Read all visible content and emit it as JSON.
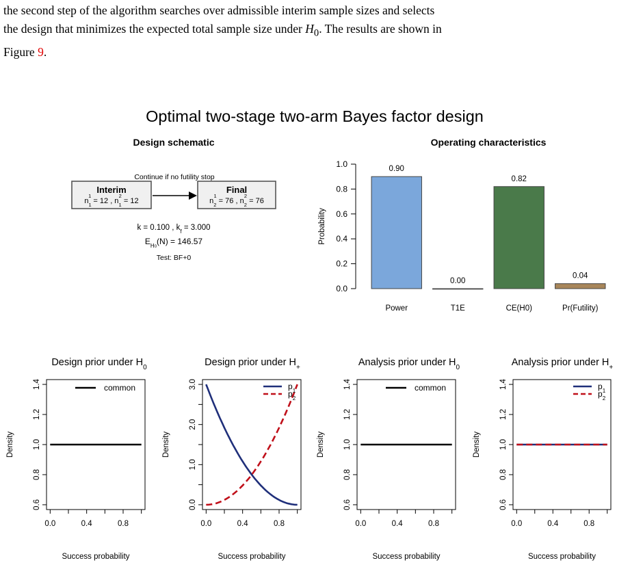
{
  "paragraph": {
    "line1": "the second step of the algorithm searches over admissible interim sample sizes and selects",
    "line2_a": "the design that minimizes the expected total sample size under ",
    "line2_math": "H",
    "line2_sub": "0",
    "line2_b": ". The results are shown in",
    "line3_a": "Figure ",
    "line3_ref": "9",
    "line3_b": "."
  },
  "figure": {
    "main_title": "Optimal two-stage two-arm Bayes factor design",
    "schematic": {
      "title": "Design schematic",
      "continue_label": "Continue if no futility stop",
      "interim": {
        "title": "Interim",
        "n1": "12",
        "n2": "12"
      },
      "final": {
        "title": "Final",
        "n1": "76",
        "n2": "76"
      },
      "k_label": "k = 0.100 , k",
      "kf_sub": "f",
      "kf_value": " = 3.000",
      "en_label_a": "E",
      "en_sub": "H",
      "en_sub2": "0",
      "en_label_b": "(N) = 146.57",
      "test_label": "Test: BF+0"
    }
  },
  "chart_data": [
    {
      "type": "bar",
      "title": "Operating characteristics",
      "ylabel": "Probability",
      "xlabel": "",
      "ylim": [
        0,
        1
      ],
      "yticks": [
        "0.0",
        "0.2",
        "0.4",
        "0.6",
        "0.8",
        "1.0"
      ],
      "categories": [
        "Power",
        "T1E",
        "CE(H0)",
        "Pr(Futility)"
      ],
      "values": [
        0.9,
        0.0,
        0.82,
        0.04
      ],
      "labels": [
        "0.90",
        "0.00",
        "0.82",
        "0.04"
      ],
      "colors": [
        "#7ba7db",
        "#ffffff",
        "#4a7a4a",
        "#a8865a"
      ]
    },
    {
      "type": "line",
      "title": "Design prior under H",
      "title_sub": "0",
      "xlabel": "Success probability",
      "ylabel": "Density",
      "xlim": [
        0,
        1
      ],
      "ylim": [
        0.6,
        1.4
      ],
      "xticks": [
        "0.0",
        "0.4",
        "0.8"
      ],
      "yticks": [
        "0.6",
        "0.8",
        "1.0",
        "1.2",
        "1.4"
      ],
      "series": [
        {
          "name": "common",
          "x": [
            0,
            1
          ],
          "y": [
            1,
            1
          ],
          "color": "#000000",
          "dash": "solid"
        }
      ]
    },
    {
      "type": "line",
      "title": "Design prior under H",
      "title_sub": "+",
      "xlabel": "Success probability",
      "ylabel": "Density",
      "xlim": [
        0,
        1
      ],
      "ylim": [
        0,
        3
      ],
      "xticks": [
        "0.0",
        "0.4",
        "0.8"
      ],
      "yticks": [
        "0.0",
        "1.0",
        "2.0",
        "3.0"
      ],
      "series": [
        {
          "name": "p",
          "sub": "1",
          "x": [
            0,
            0.1,
            0.2,
            0.3,
            0.4,
            0.5,
            0.6,
            0.7,
            0.8,
            0.9,
            1.0
          ],
          "y": [
            3.0,
            2.43,
            1.92,
            1.47,
            1.08,
            0.75,
            0.48,
            0.27,
            0.12,
            0.03,
            0.0
          ],
          "color": "#1f2f7a",
          "dash": "solid"
        },
        {
          "name": "p",
          "sub": "2",
          "x": [
            0,
            0.1,
            0.2,
            0.3,
            0.4,
            0.5,
            0.6,
            0.7,
            0.8,
            0.9,
            1.0
          ],
          "y": [
            0.0,
            0.03,
            0.12,
            0.27,
            0.48,
            0.75,
            1.08,
            1.47,
            1.92,
            2.43,
            3.0
          ],
          "color": "#c0101a",
          "dash": "dashed"
        }
      ]
    },
    {
      "type": "line",
      "title": "Analysis prior under H",
      "title_sub": "0",
      "xlabel": "Success probability",
      "ylabel": "Density",
      "xlim": [
        0,
        1
      ],
      "ylim": [
        0.6,
        1.4
      ],
      "xticks": [
        "0.0",
        "0.4",
        "0.8"
      ],
      "yticks": [
        "0.6",
        "0.8",
        "1.0",
        "1.2",
        "1.4"
      ],
      "series": [
        {
          "name": "common",
          "x": [
            0,
            1
          ],
          "y": [
            1,
            1
          ],
          "color": "#000000",
          "dash": "solid"
        }
      ]
    },
    {
      "type": "line",
      "title": "Analysis prior under H",
      "title_sub": "+",
      "xlabel": "Success probability",
      "ylabel": "Density",
      "xlim": [
        0,
        1
      ],
      "ylim": [
        0.6,
        1.4
      ],
      "xticks": [
        "0.0",
        "0.4",
        "0.8"
      ],
      "yticks": [
        "0.6",
        "0.8",
        "1.0",
        "1.2",
        "1.4"
      ],
      "series": [
        {
          "name": "p",
          "sub": "1",
          "x": [
            0,
            1
          ],
          "y": [
            1,
            1
          ],
          "color": "#1f2f7a",
          "dash": "solid"
        },
        {
          "name": "p",
          "sub": "2",
          "x": [
            0,
            1
          ],
          "y": [
            1,
            1
          ],
          "color": "#c0101a",
          "dash": "dashed"
        }
      ]
    }
  ]
}
